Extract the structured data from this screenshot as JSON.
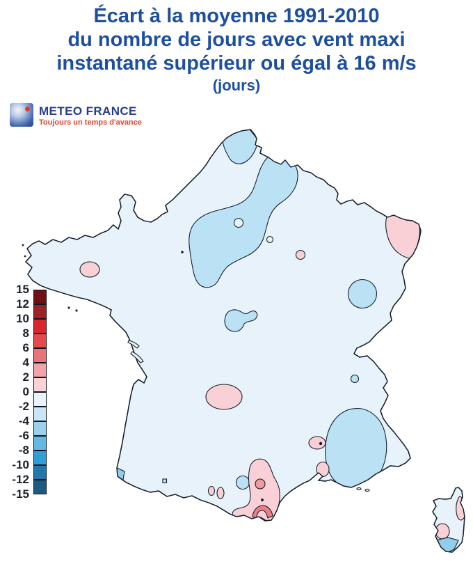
{
  "title": {
    "line1": "Écart à la moyenne 1991-2010",
    "line2": "du nombre de jours avec vent maxi",
    "line3": "instantané supérieur ou égal à 16 m/s",
    "line4": "(jours)",
    "color": "#1d4f9f"
  },
  "logo": {
    "name": "METEO FRANCE",
    "tagline": "Toujours un temps d'avance",
    "text_color": "#253c8e",
    "tagline_color": "#e2432f",
    "dot_color": "#e03a28"
  },
  "legend": {
    "unit": "jours",
    "labels": [
      "15",
      "12",
      "10",
      "8",
      "6",
      "4",
      "2",
      "0",
      "-2",
      "-4",
      "-6",
      "-8",
      "-10",
      "-12",
      "-15"
    ],
    "colors": [
      "#6f1114",
      "#9f2026",
      "#d9252d",
      "#e24a50",
      "#e9737b",
      "#f2a3aa",
      "#f9d2d6",
      "#e9f3fb",
      "#c8e6f7",
      "#9bd1ef",
      "#64b8e3",
      "#2f9fd7",
      "#2477aa",
      "#1d5a82"
    ],
    "label_color": "#1a202b"
  },
  "map": {
    "palette": {
      "sea": "#ffffff",
      "base": "#e7f2fa",
      "blue_light": "#bbe1f5",
      "blue_mid": "#93cdec",
      "pink_light": "#f8d0d5",
      "pink_mid": "#f19aa3",
      "pink_dark": "#ec7e88",
      "outline": "#16202c"
    },
    "base_value_range": "-2 to 0",
    "regions": [
      {
        "id": "nord-coast-blob",
        "value_range": "-2 to -4"
      },
      {
        "id": "north-center-s-blob",
        "value_range": "-2 to -4"
      },
      {
        "id": "center-gourd-blob",
        "value_range": "-2 to -4"
      },
      {
        "id": "jura-circle-blob",
        "value_range": "-2 to -4"
      },
      {
        "id": "rhone-small-dot",
        "value_range": "-2 to -4"
      },
      {
        "id": "provence-egg-blob",
        "value_range": "-2 to -4"
      },
      {
        "id": "toulouse-circle-blob",
        "value_range": "-2 to -4"
      },
      {
        "id": "basque-coast-patch",
        "value_range": "-4 to -6"
      },
      {
        "id": "corsica-south-patch",
        "value_range": "-4 to -6"
      },
      {
        "id": "brittany-pink-spot",
        "value_range": "0 to 2"
      },
      {
        "id": "alsace-pink-region",
        "value_range": "0 to 2"
      },
      {
        "id": "lorraine-pink-dot",
        "value_range": "0 to 2"
      },
      {
        "id": "massif-central-pink-ellipse",
        "value_range": "0 to 2"
      },
      {
        "id": "avignon-pink-spot",
        "value_range": "0 to 2"
      },
      {
        "id": "marseille-pink-spot",
        "value_range": "0 to 2"
      },
      {
        "id": "languedoc-pink-region",
        "value_range": "0 to 2"
      },
      {
        "id": "languedoc-inner-circle",
        "value_range": "2 to 4"
      },
      {
        "id": "perpignan-coast-arc",
        "value_range": "4 to 6"
      },
      {
        "id": "pyrenees-pink-spots",
        "value_range": "0 to 2"
      },
      {
        "id": "corsica-east-pink",
        "value_range": "0 to 2"
      },
      {
        "id": "corsica-west-pink",
        "value_range": "0 to 2"
      }
    ]
  }
}
